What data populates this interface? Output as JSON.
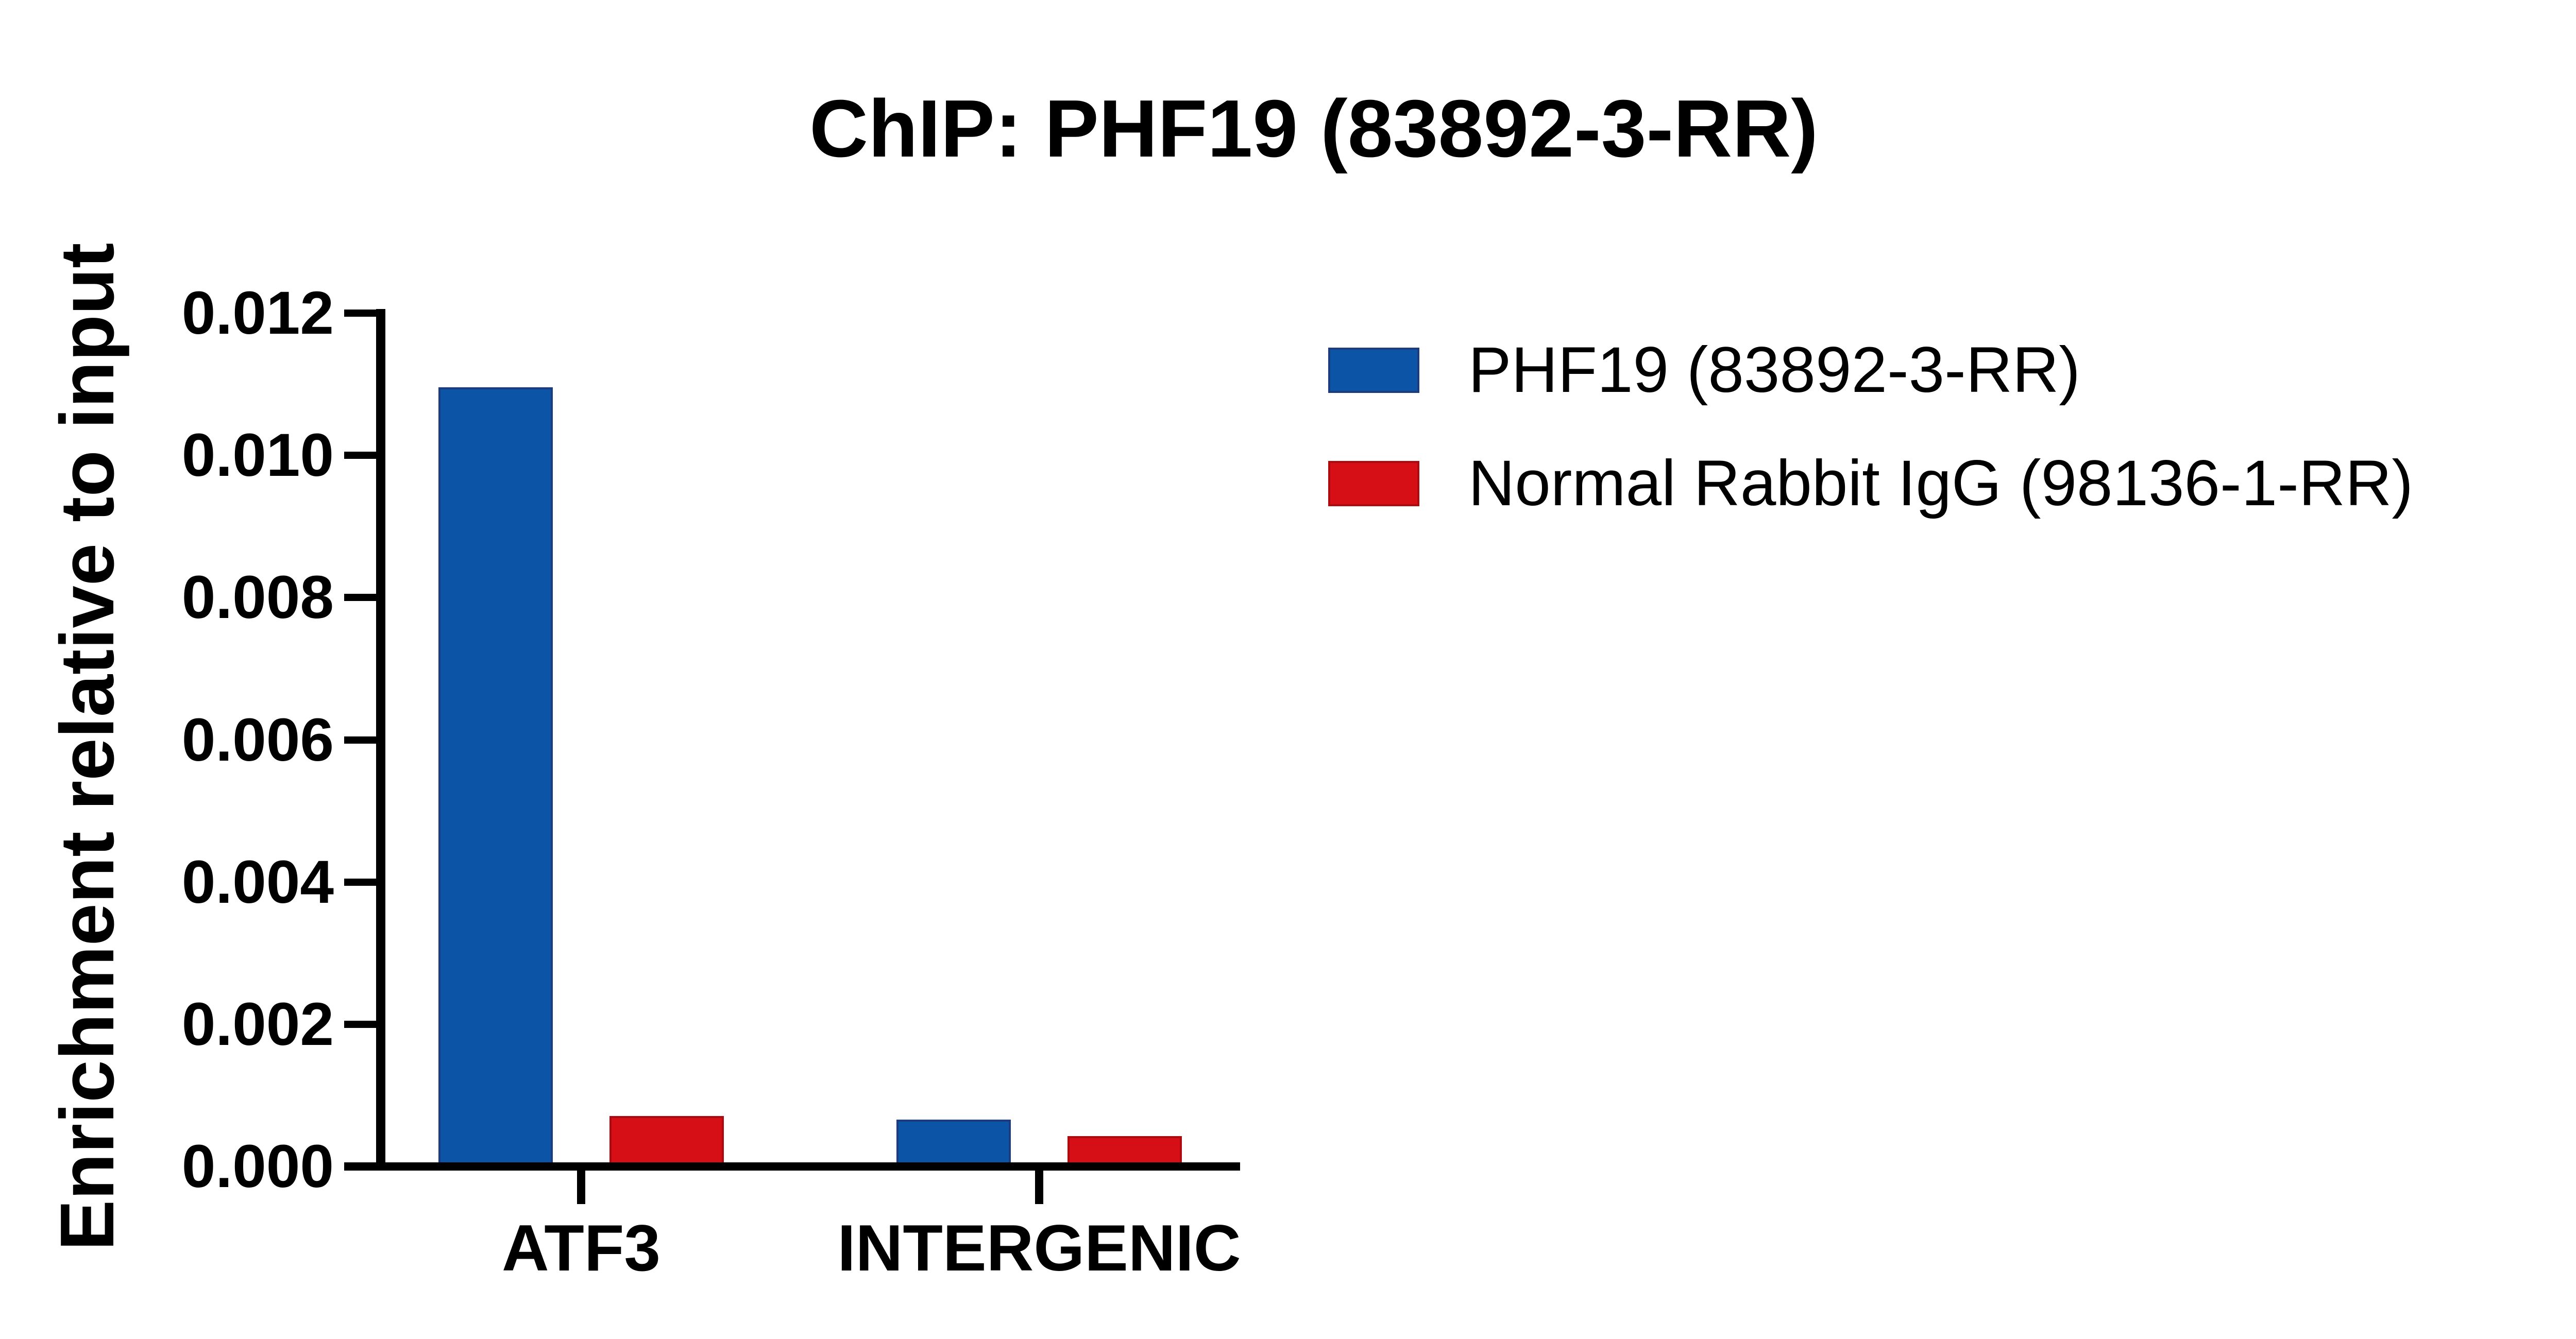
{
  "title": "ChIP: PHF19 (83892-3-RR)",
  "axis": {
    "ylabel": "Enrichment relative to input",
    "yticks": [
      "0.012",
      "0.010",
      "0.008",
      "0.006",
      "0.004",
      "0.002",
      "0.000"
    ],
    "categories": [
      "ATF3",
      "INTERGENIC"
    ]
  },
  "legend": {
    "items": [
      {
        "label": "PHF19 (83892-3-RR)",
        "color": "#0B54A6"
      },
      {
        "label": "Normal Rabbit IgG (98136-1-RR)",
        "color": "#D50F15"
      }
    ]
  },
  "chart_data": {
    "type": "bar",
    "title": "ChIP: PHF19 (83892-3-RR)",
    "xlabel": "",
    "ylabel": "Enrichment relative to input",
    "categories": [
      "ATF3",
      "INTERGENIC"
    ],
    "series": [
      {
        "name": "PHF19 (83892-3-RR)",
        "color": "#0B54A6",
        "border_color": "#1C3C7E",
        "values": [
          0.0109,
          0.0006
        ]
      },
      {
        "name": "Normal Rabbit IgG (98136-1-RR)",
        "color": "#D50F15",
        "border_color": "#AE0B10",
        "values": [
          0.00065,
          0.00037
        ]
      }
    ],
    "ylim": [
      0,
      0.012
    ],
    "ytick_step": 0.002,
    "grid": false,
    "legend_position": "right-top",
    "bar_outline": true
  }
}
